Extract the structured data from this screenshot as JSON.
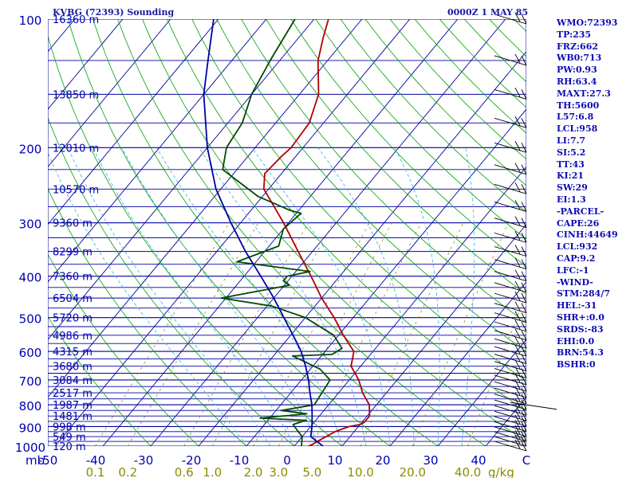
{
  "header": {
    "title": "KVBG (72393) Sounding",
    "datetime": "0000Z  1 MAY 85"
  },
  "indices": [
    "WMO:72393",
    "TP:235",
    "FRZ:662",
    "WB0:713",
    "PW:0.93",
    "RH:63.4",
    "MAXT:27.3",
    "TH:5600",
    "L57:6.8",
    "LCL:958",
    "LI:7.7",
    "SI:5.2",
    "TT:43",
    "KI:21",
    "SW:29",
    "EI:1.3",
    "-PARCEL-",
    "CAPE:26",
    "CINH:44649",
    "LCL:932",
    "CAP:9.2",
    "LFC:-1",
    "-WIND-",
    "STM:284/7",
    "HEL:-31",
    "SHR+:0.0",
    "SRDS:-83",
    "EHI:0.0",
    "BRN:54.3",
    "BSHR:0"
  ],
  "chart_data": {
    "type": "line",
    "subtype": "skew-T log-P sounding",
    "y_axis": {
      "label": "mb",
      "scale": "log",
      "range": [
        1000,
        100
      ],
      "ticks": [
        100,
        200,
        300,
        400,
        500,
        600,
        700,
        800,
        900,
        1000
      ]
    },
    "x_axis": {
      "label": "",
      "range": [
        -50,
        50
      ],
      "ticks": [
        "-50",
        "-40",
        "-30",
        "-20",
        "-10",
        "0",
        "10",
        "20",
        "30",
        "40",
        "C"
      ],
      "tick_values": [
        -50,
        -40,
        -30,
        -20,
        -10,
        0,
        10,
        20,
        30,
        40,
        50
      ]
    },
    "mixing_ratio_axis": {
      "unit": "g/kg",
      "ticks": [
        "0.1",
        "0.2",
        "0.6",
        "1.0",
        "2.0",
        "3.0",
        "5.0",
        "10.0",
        "20.0",
        "40.0"
      ],
      "values": [
        0.1,
        0.2,
        0.6,
        1.0,
        2.0,
        3.0,
        5.0,
        10.0,
        20.0,
        40.0
      ],
      "color": "#8c8c00"
    },
    "height_labels": [
      {
        "p": 100,
        "label": "16360 m"
      },
      {
        "p": 150,
        "label": "13850 m"
      },
      {
        "p": 200,
        "label": "12010 m"
      },
      {
        "p": 250,
        "label": "10570 m"
      },
      {
        "p": 300,
        "label": "9360 m"
      },
      {
        "p": 350,
        "label": "8299 m"
      },
      {
        "p": 400,
        "label": "7360 m"
      },
      {
        "p": 450,
        "label": "6504 m"
      },
      {
        "p": 500,
        "label": "5720 m"
      },
      {
        "p": 550,
        "label": "4986 m"
      },
      {
        "p": 600,
        "label": "4315 m"
      },
      {
        "p": 650,
        "label": "3680 m"
      },
      {
        "p": 700,
        "label": "3084 m"
      },
      {
        "p": 750,
        "label": "2517 m"
      },
      {
        "p": 800,
        "label": "1987 m"
      },
      {
        "p": 850,
        "label": "1481 m"
      },
      {
        "p": 900,
        "label": "998 m"
      },
      {
        "p": 950,
        "label": "549 m"
      },
      {
        "p": 1000,
        "label": "120 m"
      }
    ],
    "series": [
      {
        "key": "temperature",
        "color": "#b00000",
        "points": [
          {
            "p": 1000,
            "t": 3
          },
          {
            "p": 990,
            "t": 3.5
          },
          {
            "p": 975,
            "t": 4
          },
          {
            "p": 950,
            "t": 5
          },
          {
            "p": 925,
            "t": 6
          },
          {
            "p": 900,
            "t": 8
          },
          {
            "p": 890,
            "t": 10
          },
          {
            "p": 880,
            "t": 10.5
          },
          {
            "p": 850,
            "t": 10.5
          },
          {
            "p": 800,
            "t": 8.5
          },
          {
            "p": 750,
            "t": 5
          },
          {
            "p": 700,
            "t": 2
          },
          {
            "p": 650,
            "t": -2
          },
          {
            "p": 600,
            "t": -4
          },
          {
            "p": 550,
            "t": -9
          },
          {
            "p": 500,
            "t": -14
          },
          {
            "p": 450,
            "t": -20
          },
          {
            "p": 400,
            "t": -26
          },
          {
            "p": 350,
            "t": -33
          },
          {
            "p": 300,
            "t": -41
          },
          {
            "p": 250,
            "t": -51
          },
          {
            "p": 230,
            "t": -53.5
          },
          {
            "p": 210,
            "t": -53
          },
          {
            "p": 200,
            "t": -52.5
          },
          {
            "p": 175,
            "t": -53
          },
          {
            "p": 150,
            "t": -56
          },
          {
            "p": 125,
            "t": -62
          },
          {
            "p": 110,
            "t": -65
          },
          {
            "p": 100,
            "t": -67
          }
        ]
      },
      {
        "key": "dewpoint",
        "color": "#004a00",
        "points": [
          {
            "p": 1000,
            "t": 1.5
          },
          {
            "p": 950,
            "t": 0
          },
          {
            "p": 920,
            "t": -2
          },
          {
            "p": 890,
            "t": -4
          },
          {
            "p": 870,
            "t": -2
          },
          {
            "p": 860,
            "t": -12
          },
          {
            "p": 840,
            "t": -3
          },
          {
            "p": 825,
            "t": -9
          },
          {
            "p": 800,
            "t": -3
          },
          {
            "p": 700,
            "t": -4
          },
          {
            "p": 660,
            "t": -8
          },
          {
            "p": 615,
            "t": -16
          },
          {
            "p": 610,
            "t": -8
          },
          {
            "p": 590,
            "t": -7
          },
          {
            "p": 550,
            "t": -11
          },
          {
            "p": 500,
            "t": -20
          },
          {
            "p": 470,
            "t": -29
          },
          {
            "p": 450,
            "t": -41
          },
          {
            "p": 420,
            "t": -29
          },
          {
            "p": 410,
            "t": -31
          },
          {
            "p": 400,
            "t": -31
          },
          {
            "p": 390,
            "t": -27
          },
          {
            "p": 370,
            "t": -44
          },
          {
            "p": 340,
            "t": -38
          },
          {
            "p": 310,
            "t": -40
          },
          {
            "p": 285,
            "t": -39
          },
          {
            "p": 280,
            "t": -42
          },
          {
            "p": 260,
            "t": -51
          },
          {
            "p": 225,
            "t": -63
          },
          {
            "p": 200,
            "t": -66
          },
          {
            "p": 175,
            "t": -67
          },
          {
            "p": 150,
            "t": -70
          },
          {
            "p": 125,
            "t": -72
          },
          {
            "p": 100,
            "t": -74
          }
        ]
      },
      {
        "key": "parcel",
        "color": "#0000a0",
        "points": [
          {
            "p": 1000,
            "t": 6
          },
          {
            "p": 950,
            "t": 1.8
          },
          {
            "p": 900,
            "t": 0.3
          },
          {
            "p": 850,
            "t": -1.5
          },
          {
            "p": 800,
            "t": -3.5
          },
          {
            "p": 750,
            "t": -6
          },
          {
            "p": 700,
            "t": -8.5
          },
          {
            "p": 650,
            "t": -11.5
          },
          {
            "p": 600,
            "t": -15
          },
          {
            "p": 550,
            "t": -19.5
          },
          {
            "p": 500,
            "t": -24.5
          },
          {
            "p": 450,
            "t": -30
          },
          {
            "p": 400,
            "t": -36.5
          },
          {
            "p": 350,
            "t": -44
          },
          {
            "p": 300,
            "t": -52
          },
          {
            "p": 250,
            "t": -61
          },
          {
            "p": 200,
            "t": -70
          },
          {
            "p": 150,
            "t": -80
          },
          {
            "p": 125,
            "t": -85
          },
          {
            "p": 100,
            "t": -91
          }
        ]
      }
    ],
    "wind_barbs_color": "#000000",
    "colors": {
      "isobars": "#0000a0",
      "isotherms": "#0000a0",
      "dry_adiabats": "#00a000",
      "moist_adiabats": "#4ab4e6",
      "mixing_ratio": "#808000",
      "frame": "#ffffff"
    }
  }
}
